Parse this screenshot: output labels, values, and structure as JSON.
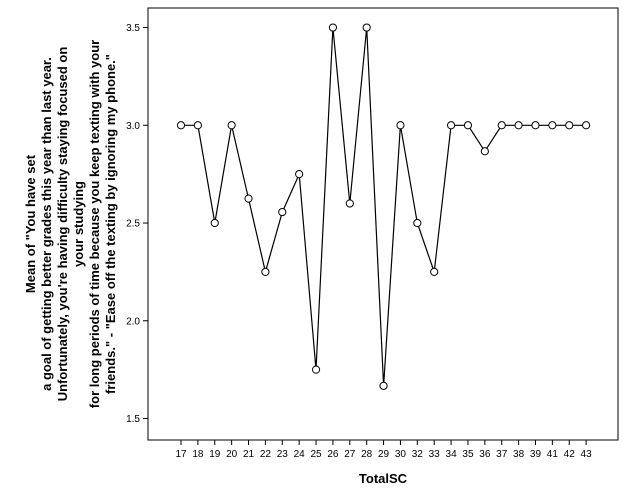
{
  "chart_data": {
    "type": "line",
    "xlabel": "TotalSC",
    "ylabel_lines": [
      "Mean of \"You have set",
      "a goal of getting better grades this year than last year.",
      "Unfortunately, you're having difficulty staying focused on",
      "your studying",
      "for long periods of time because you keep texting with your",
      "friends.\" - \"Ease off the texting by ignoring my phone.\""
    ],
    "categories": [
      "17",
      "18",
      "19",
      "20",
      "21",
      "22",
      "23",
      "24",
      "25",
      "26",
      "27",
      "28",
      "29",
      "30",
      "32",
      "33",
      "34",
      "35",
      "36",
      "37",
      "38",
      "39",
      "41",
      "42",
      "43"
    ],
    "values": [
      3.0,
      3.0,
      2.5,
      3.0,
      2.625,
      2.25,
      2.556,
      2.75,
      1.75,
      3.5,
      2.6,
      3.5,
      1.667,
      3.0,
      2.5,
      2.25,
      3.0,
      3.0,
      2.867,
      3.0,
      3.0,
      3.0,
      3.0,
      3.0,
      3.0
    ],
    "yticks": [
      1.5,
      2.0,
      2.5,
      3.0,
      3.5
    ],
    "ylim": [
      1.39,
      3.6
    ],
    "grid": false,
    "marker": "open-circle",
    "colors": {
      "line": "#000000",
      "frame": "#000000",
      "background": "#ffffff"
    }
  }
}
